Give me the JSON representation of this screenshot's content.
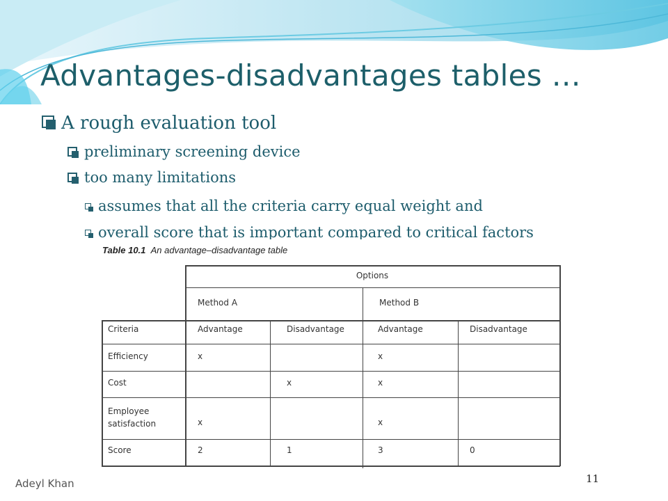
{
  "slide": {
    "title": "Advantages-disadvantages tables …",
    "bullets": {
      "l1": "A rough evaluation tool",
      "l2a": "preliminary screening device",
      "l2b": "too many limitations",
      "l3a": "assumes that all the criteria carry equal weight and",
      "l3b": "overall score that is important compared to critical factors"
    }
  },
  "table": {
    "caption_label": "Table 10.1",
    "caption_text": "An advantage–disadvantage table",
    "options_header": "Options",
    "method_a": "Method A",
    "method_b": "Method B",
    "headers": [
      "Criteria",
      "Advantage",
      "Disadvantage",
      "Advantage",
      "Disadvantage"
    ],
    "rows": [
      [
        "Efficiency",
        "x",
        "",
        "x",
        ""
      ],
      [
        "Cost",
        "",
        "x",
        "x",
        ""
      ],
      [
        "Employee satisfaction",
        "x",
        "",
        "x",
        ""
      ],
      [
        "Score",
        "2",
        "1",
        "3",
        "0"
      ]
    ],
    "row_label_lines": {
      "employee_1": "Employee",
      "employee_2": "satisfaction"
    }
  },
  "footer": {
    "author": "Adeyl Khan",
    "page": "11"
  },
  "colors": {
    "title": "#1d5f6a",
    "bullet_text": "#1d5c6c",
    "wave_light": "#bfe6f2",
    "wave_mid": "#7fd0e8",
    "wave_dark": "#2fb3d8"
  }
}
